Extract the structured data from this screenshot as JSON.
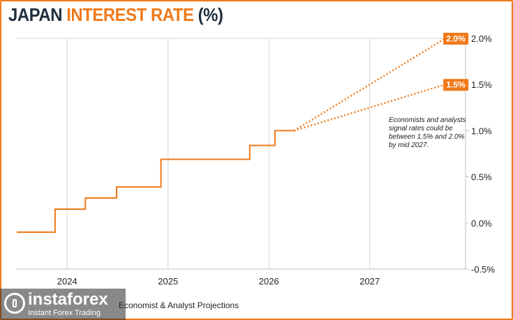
{
  "title": {
    "part1": "JAPAN ",
    "part2": "INTEREST RATE",
    "part3": " (%)"
  },
  "source_text": "Economist & Analyst Projections",
  "watermark": {
    "name": "instaforex",
    "tagline": "Instant Forex Trading",
    "icon": "instaforex-logo-icon"
  },
  "colors": {
    "accent": "#f07a1a",
    "title_dark": "#1f2f3f",
    "grid": "#d6d6d6"
  },
  "chart_data": {
    "type": "line",
    "title": "JAPAN INTEREST RATE (%)",
    "xlabel": "",
    "ylabel": "",
    "xlim": [
      2023.5,
      2027.95
    ],
    "ylim": [
      -0.5,
      2.0
    ],
    "x_ticks": [
      2024,
      2025,
      2026,
      2027
    ],
    "y_ticks": [
      2.0,
      1.5,
      1.0,
      0.5,
      0.0,
      -0.5
    ],
    "y_tick_labels": [
      "2.0%",
      "1.5%",
      "1.0%",
      "0.5%",
      "0.0%",
      "-0.5%"
    ],
    "y_axis_side": "right",
    "grid": "vertical",
    "series": [
      {
        "style": "step-solid",
        "points": [
          [
            2023.5,
            -0.1
          ],
          [
            2023.88,
            -0.1
          ],
          [
            2023.88,
            0.15
          ],
          [
            2024.18,
            0.15
          ],
          [
            2024.18,
            0.27
          ],
          [
            2024.49,
            0.27
          ],
          [
            2024.49,
            0.39
          ],
          [
            2024.93,
            0.39
          ],
          [
            2024.93,
            0.69
          ],
          [
            2025.81,
            0.69
          ],
          [
            2025.81,
            0.84
          ],
          [
            2026.06,
            0.84
          ],
          [
            2026.06,
            1.0
          ],
          [
            2026.25,
            1.0
          ]
        ]
      },
      {
        "style": "dotted",
        "points": [
          [
            2026.25,
            1.0
          ],
          [
            2027.75,
            2.0
          ]
        ],
        "end_label": "2.0%"
      },
      {
        "style": "dotted",
        "points": [
          [
            2026.25,
            1.0
          ],
          [
            2027.75,
            1.5
          ]
        ],
        "end_label": "1.5%"
      }
    ],
    "annotations": [
      "Economists and analysts",
      "signal rates could be",
      "between 1.5% and 2.0%",
      "by mid 2027."
    ]
  }
}
